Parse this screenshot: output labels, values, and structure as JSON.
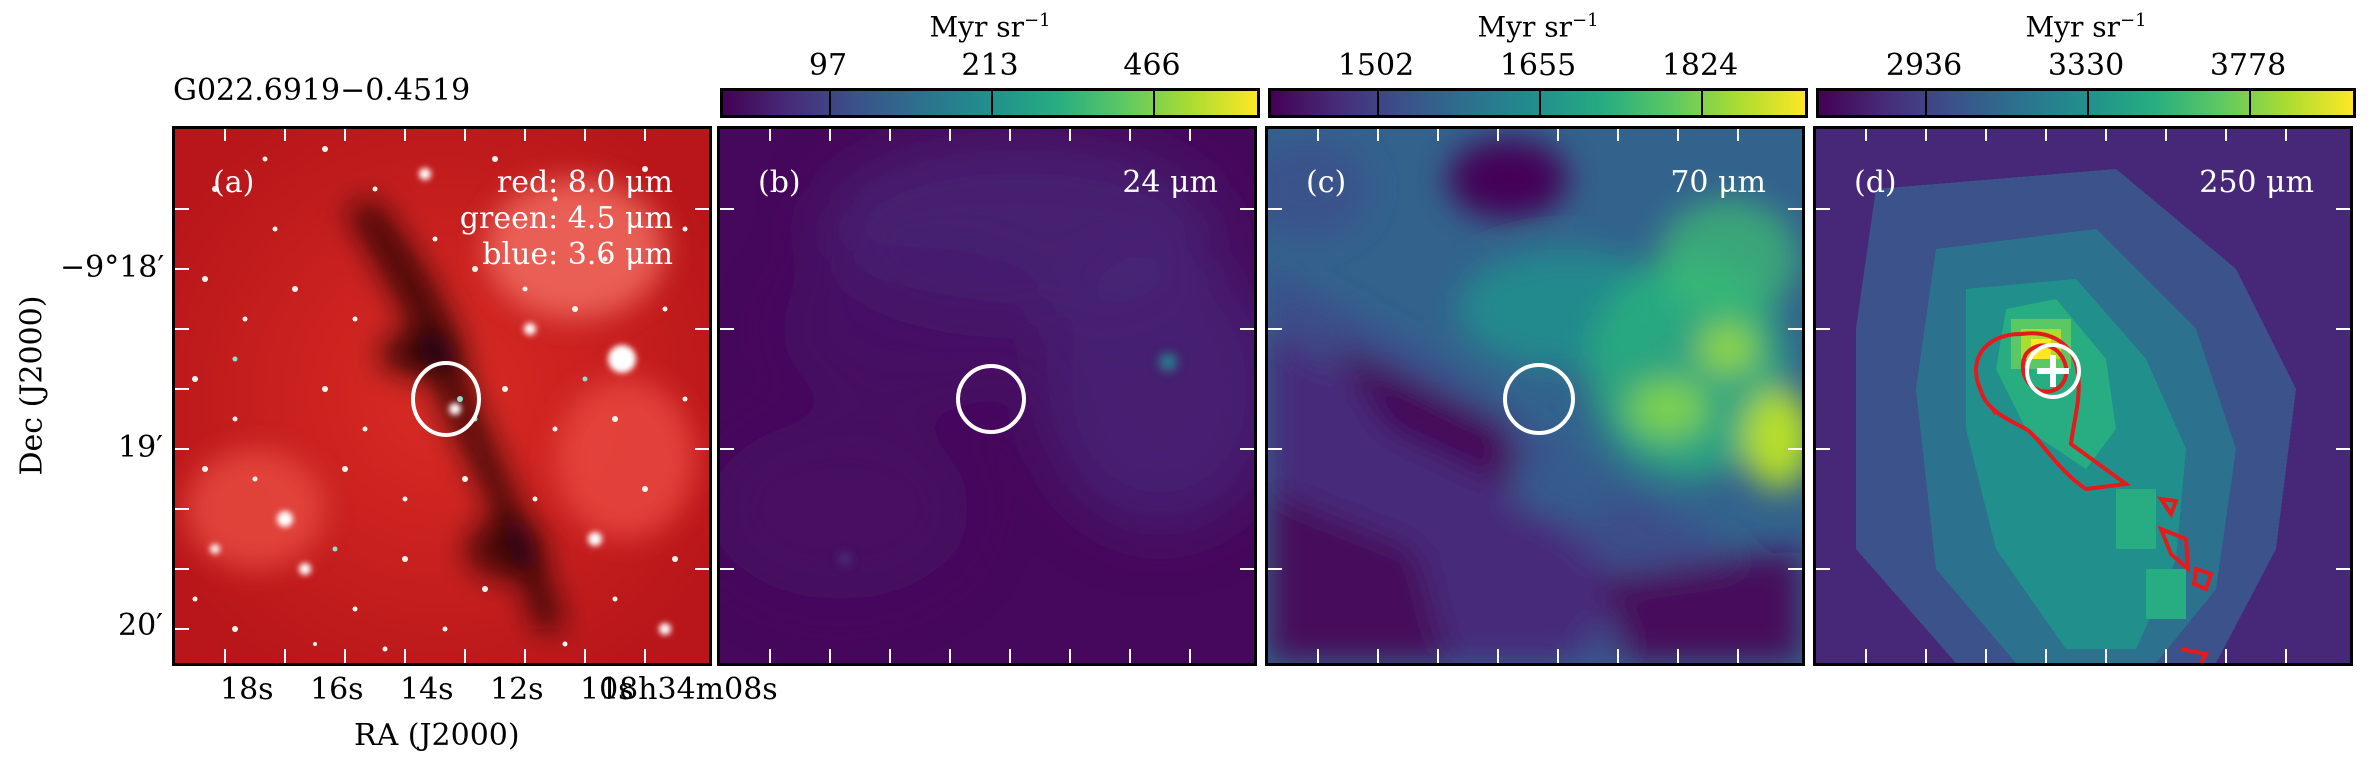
{
  "figure": {
    "source_name": "G022.6919−0.4519",
    "y_axis_label": "Dec (J2000)",
    "x_axis_label": "RA (J2000)",
    "y_ticks": [
      "−9°18′",
      "19′",
      "20′"
    ],
    "x_ticks": [
      "18s",
      "16s",
      "14s",
      "12s",
      "10s",
      "18h34m08s"
    ]
  },
  "panels": [
    {
      "id": "a",
      "label": "(a)",
      "band_lines": [
        "red: 8.0 μm",
        "green: 4.5 μm",
        "blue: 3.6 μm"
      ],
      "colorbar": null
    },
    {
      "id": "b",
      "label": "(b)",
      "wavelength": "24 μm",
      "colorbar": {
        "unit": "Myr sr",
        "unit_exp": "−1",
        "ticks": [
          "97",
          "213",
          "466"
        ]
      }
    },
    {
      "id": "c",
      "label": "(c)",
      "wavelength": "70 μm",
      "colorbar": {
        "unit": "Myr sr",
        "unit_exp": "−1",
        "ticks": [
          "1502",
          "1655",
          "1824"
        ]
      }
    },
    {
      "id": "d",
      "label": "(d)",
      "wavelength": "250 μm",
      "colorbar": {
        "unit": "Myr sr",
        "unit_exp": "−1",
        "ticks": [
          "2936",
          "3330",
          "3778"
        ]
      }
    }
  ],
  "colors": {
    "aperture": "#ffffff",
    "contour": "#e41a1c",
    "viridis_low": "#440154",
    "viridis_high": "#fde725",
    "irac_background": "#cc1f1f"
  }
}
